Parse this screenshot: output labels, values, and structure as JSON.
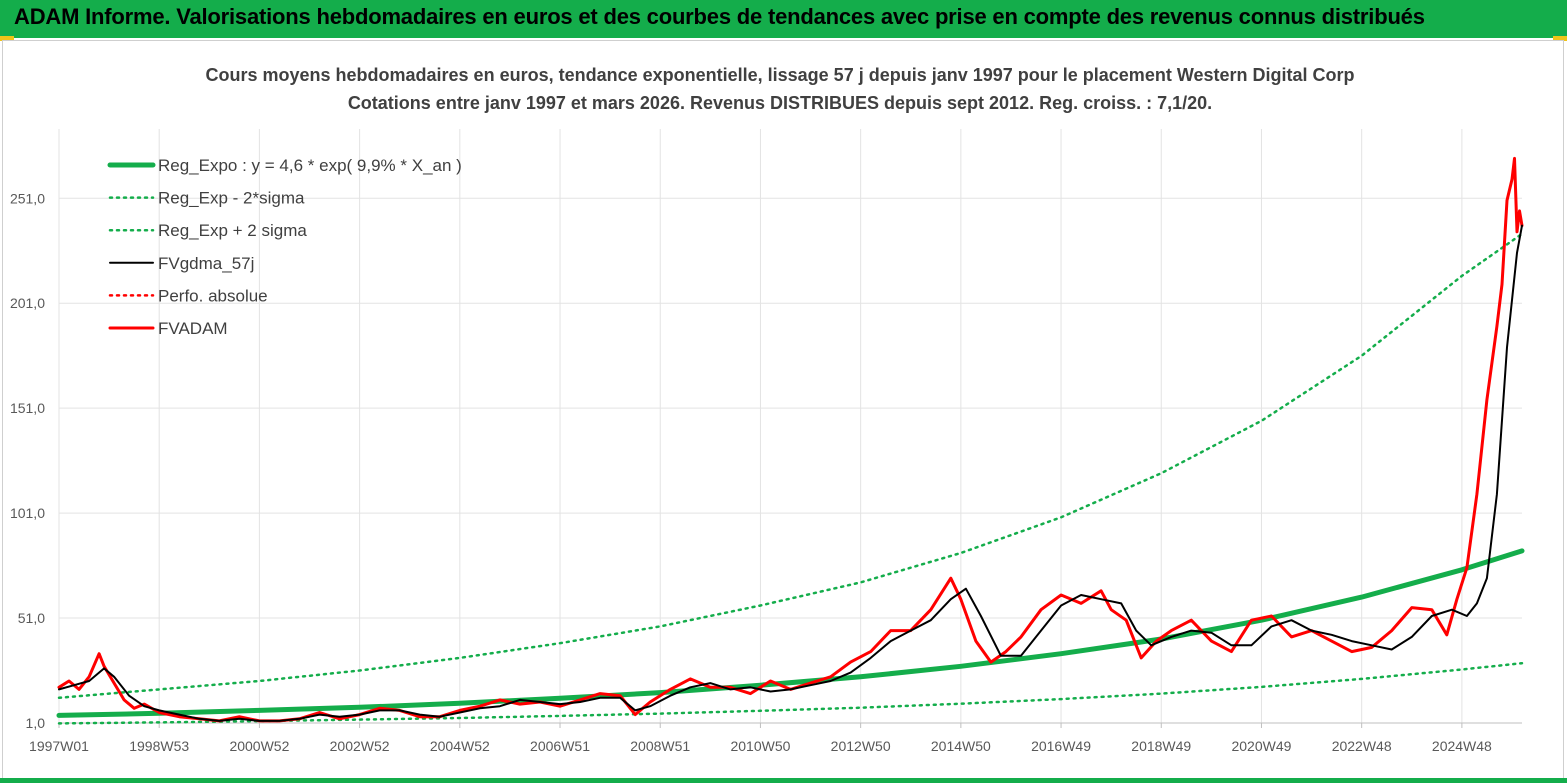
{
  "header": {
    "title": "ADAM Informe. Valorisations hebdomadaires en euros et des courbes de tendances avec prise en compte des revenus connus distribués"
  },
  "colors": {
    "banner": "#14ad4b",
    "reg_expo": "#14ad4b",
    "fvgdma": "#000000",
    "fvadam": "#ff0000",
    "perfo": "#ff0000"
  },
  "chart_data": {
    "type": "line",
    "title": "Cours moyens hebdomadaires en euros, tendance exponentielle, lissage 57 j depuis janv 1997 pour le placement Western Digital Corp",
    "subtitle": "Cotations entre janv 1997 et mars 2026. Revenus DISTRIBUES depuis sept 2012. Reg. croiss. : 7,1/20.",
    "xlabel": "",
    "ylabel": "",
    "ylim": [
      1,
      284
    ],
    "xlim": [
      1997.0,
      2026.2
    ],
    "y_ticks": [
      {
        "value": 1,
        "label": "1,0"
      },
      {
        "value": 51,
        "label": "51,0"
      },
      {
        "value": 101,
        "label": "101,0"
      },
      {
        "value": 151,
        "label": "151,0"
      },
      {
        "value": 201,
        "label": "201,0"
      },
      {
        "value": 251,
        "label": "251,0"
      }
    ],
    "x_ticks": [
      {
        "value": 1997.0,
        "label": "1997W01"
      },
      {
        "value": 1999.0,
        "label": "1998W53"
      },
      {
        "value": 2001.0,
        "label": "2000W52"
      },
      {
        "value": 2003.0,
        "label": "2002W52"
      },
      {
        "value": 2005.0,
        "label": "2004W52"
      },
      {
        "value": 2007.0,
        "label": "2006W51"
      },
      {
        "value": 2009.0,
        "label": "2008W51"
      },
      {
        "value": 2011.0,
        "label": "2010W50"
      },
      {
        "value": 2013.0,
        "label": "2012W50"
      },
      {
        "value": 2015.0,
        "label": "2014W50"
      },
      {
        "value": 2017.0,
        "label": "2016W49"
      },
      {
        "value": 2019.0,
        "label": "2018W49"
      },
      {
        "value": 2021.0,
        "label": "2020W49"
      },
      {
        "value": 2023.0,
        "label": "2022W48"
      },
      {
        "value": 2025.0,
        "label": "2024W48"
      }
    ],
    "grid": true,
    "legend_position": "top-left",
    "series": [
      {
        "name": "Reg_Expo : y = 4,6 * exp( 9,9% * X_an )",
        "style": "solid-thick",
        "color": "#14ad4b",
        "x": [
          1997.0,
          1999.0,
          2001.0,
          2003.0,
          2005.0,
          2007.0,
          2009.0,
          2011.0,
          2013.0,
          2015.0,
          2017.0,
          2019.0,
          2021.0,
          2023.0,
          2025.0,
          2026.2
        ],
        "values": [
          4.6,
          5.6,
          7.0,
          8.5,
          10.4,
          12.8,
          15.5,
          19.0,
          23.0,
          28.0,
          34.0,
          41.0,
          50.0,
          61.0,
          74.0,
          83.0
        ]
      },
      {
        "name": "Reg_Exp - 2*sigma",
        "style": "dotted",
        "color": "#14ad4b",
        "x": [
          1997.0,
          1999.0,
          2001.0,
          2003.0,
          2005.0,
          2007.0,
          2009.0,
          2011.0,
          2013.0,
          2015.0,
          2017.0,
          2019.0,
          2021.0,
          2023.0,
          2025.0,
          2026.2
        ],
        "values": [
          0.8,
          1.3,
          1.9,
          2.6,
          3.4,
          4.4,
          5.5,
          6.8,
          8.3,
          10.2,
          12.4,
          15.0,
          18.2,
          22.0,
          26.5,
          29.5
        ]
      },
      {
        "name": "Reg_Exp + 2 sigma",
        "style": "dotted",
        "color": "#14ad4b",
        "x": [
          1997.0,
          1999.0,
          2001.0,
          2003.0,
          2005.0,
          2007.0,
          2009.0,
          2011.0,
          2013.0,
          2015.0,
          2017.0,
          2019.0,
          2021.0,
          2023.0,
          2025.0,
          2026.2
        ],
        "values": [
          13,
          17,
          21,
          26,
          32,
          39,
          47,
          57,
          68,
          82,
          99,
          120,
          145,
          176,
          214,
          234
        ]
      },
      {
        "name": "FVgdma_57j",
        "style": "solid",
        "color": "#000000",
        "x": [
          1997.0,
          1997.3,
          1997.6,
          1997.9,
          1998.1,
          1998.4,
          1998.7,
          1999.0,
          1999.4,
          1999.8,
          2000.2,
          2000.6,
          2001.0,
          2001.4,
          2001.8,
          2002.2,
          2002.6,
          2003.0,
          2003.4,
          2003.8,
          2004.2,
          2004.6,
          2005.0,
          2005.4,
          2005.8,
          2006.2,
          2006.6,
          2007.0,
          2007.4,
          2007.8,
          2008.2,
          2008.5,
          2008.8,
          2009.2,
          2009.6,
          2010.0,
          2010.4,
          2010.8,
          2011.2,
          2011.6,
          2012.0,
          2012.4,
          2012.8,
          2013.2,
          2013.6,
          2014.0,
          2014.4,
          2014.8,
          2015.1,
          2015.4,
          2015.8,
          2016.2,
          2016.6,
          2017.0,
          2017.4,
          2017.8,
          2018.2,
          2018.5,
          2018.8,
          2019.2,
          2019.6,
          2020.0,
          2020.4,
          2020.8,
          2021.2,
          2021.6,
          2022.0,
          2022.4,
          2022.8,
          2023.2,
          2023.6,
          2024.0,
          2024.4,
          2024.8,
          2025.1,
          2025.3,
          2025.5,
          2025.7,
          2025.9,
          2026.1,
          2026.2
        ],
        "values": [
          17,
          19,
          21,
          27,
          23,
          14,
          9,
          7,
          5,
          3,
          2,
          3,
          2,
          2,
          3,
          5,
          4,
          5,
          7,
          7,
          5,
          4,
          6,
          8,
          9,
          12,
          11,
          10,
          11,
          13,
          13,
          7,
          9,
          14,
          18,
          20,
          17,
          18,
          16,
          17,
          19,
          21,
          25,
          32,
          40,
          45,
          50,
          60,
          65,
          52,
          33,
          33,
          45,
          57,
          62,
          60,
          58,
          45,
          38,
          42,
          45,
          44,
          38,
          38,
          47,
          50,
          45,
          43,
          40,
          38,
          36,
          42,
          52,
          55,
          52,
          58,
          70,
          110,
          180,
          225,
          238
        ]
      },
      {
        "name": "Perfo. absolue",
        "style": "dotted",
        "color": "#ff0000",
        "x": [],
        "values": []
      },
      {
        "name": "FVADAM",
        "style": "solid-thick",
        "color": "#ff0000",
        "x": [
          1997.0,
          1997.2,
          1997.4,
          1997.6,
          1997.8,
          1997.9,
          1998.1,
          1998.3,
          1998.5,
          1998.7,
          1999.0,
          1999.4,
          1999.8,
          2000.2,
          2000.6,
          2001.0,
          2001.4,
          2001.8,
          2002.2,
          2002.6,
          2003.0,
          2003.4,
          2003.8,
          2004.2,
          2004.6,
          2005.0,
          2005.4,
          2005.8,
          2006.2,
          2006.6,
          2007.0,
          2007.4,
          2007.8,
          2008.2,
          2008.5,
          2008.8,
          2009.2,
          2009.6,
          2010.0,
          2010.4,
          2010.8,
          2011.2,
          2011.6,
          2012.0,
          2012.4,
          2012.8,
          2013.2,
          2013.6,
          2014.0,
          2014.4,
          2014.8,
          2015.0,
          2015.3,
          2015.6,
          2015.9,
          2016.2,
          2016.6,
          2017.0,
          2017.4,
          2017.8,
          2018.0,
          2018.3,
          2018.6,
          2018.9,
          2019.2,
          2019.6,
          2020.0,
          2020.4,
          2020.8,
          2021.2,
          2021.6,
          2022.0,
          2022.4,
          2022.8,
          2023.2,
          2023.6,
          2024.0,
          2024.4,
          2024.7,
          2024.9,
          2025.1,
          2025.3,
          2025.5,
          2025.7,
          2025.8,
          2025.9,
          2026.0,
          2026.05,
          2026.1,
          2026.15,
          2026.2
        ],
        "values": [
          18,
          21,
          17,
          23,
          34,
          28,
          20,
          12,
          8,
          10,
          6,
          4,
          3,
          2,
          4,
          2,
          2,
          3,
          6,
          3,
          5,
          8,
          7,
          4,
          4,
          7,
          9,
          12,
          10,
          11,
          9,
          12,
          15,
          14,
          5,
          11,
          17,
          22,
          18,
          18,
          15,
          21,
          17,
          20,
          23,
          30,
          35,
          45,
          45,
          55,
          70,
          60,
          40,
          30,
          35,
          42,
          55,
          62,
          58,
          64,
          55,
          50,
          32,
          40,
          45,
          50,
          40,
          35,
          50,
          52,
          42,
          45,
          40,
          35,
          37,
          45,
          56,
          55,
          43,
          60,
          75,
          110,
          155,
          190,
          210,
          250,
          260,
          270,
          235,
          245,
          238
        ]
      }
    ]
  }
}
